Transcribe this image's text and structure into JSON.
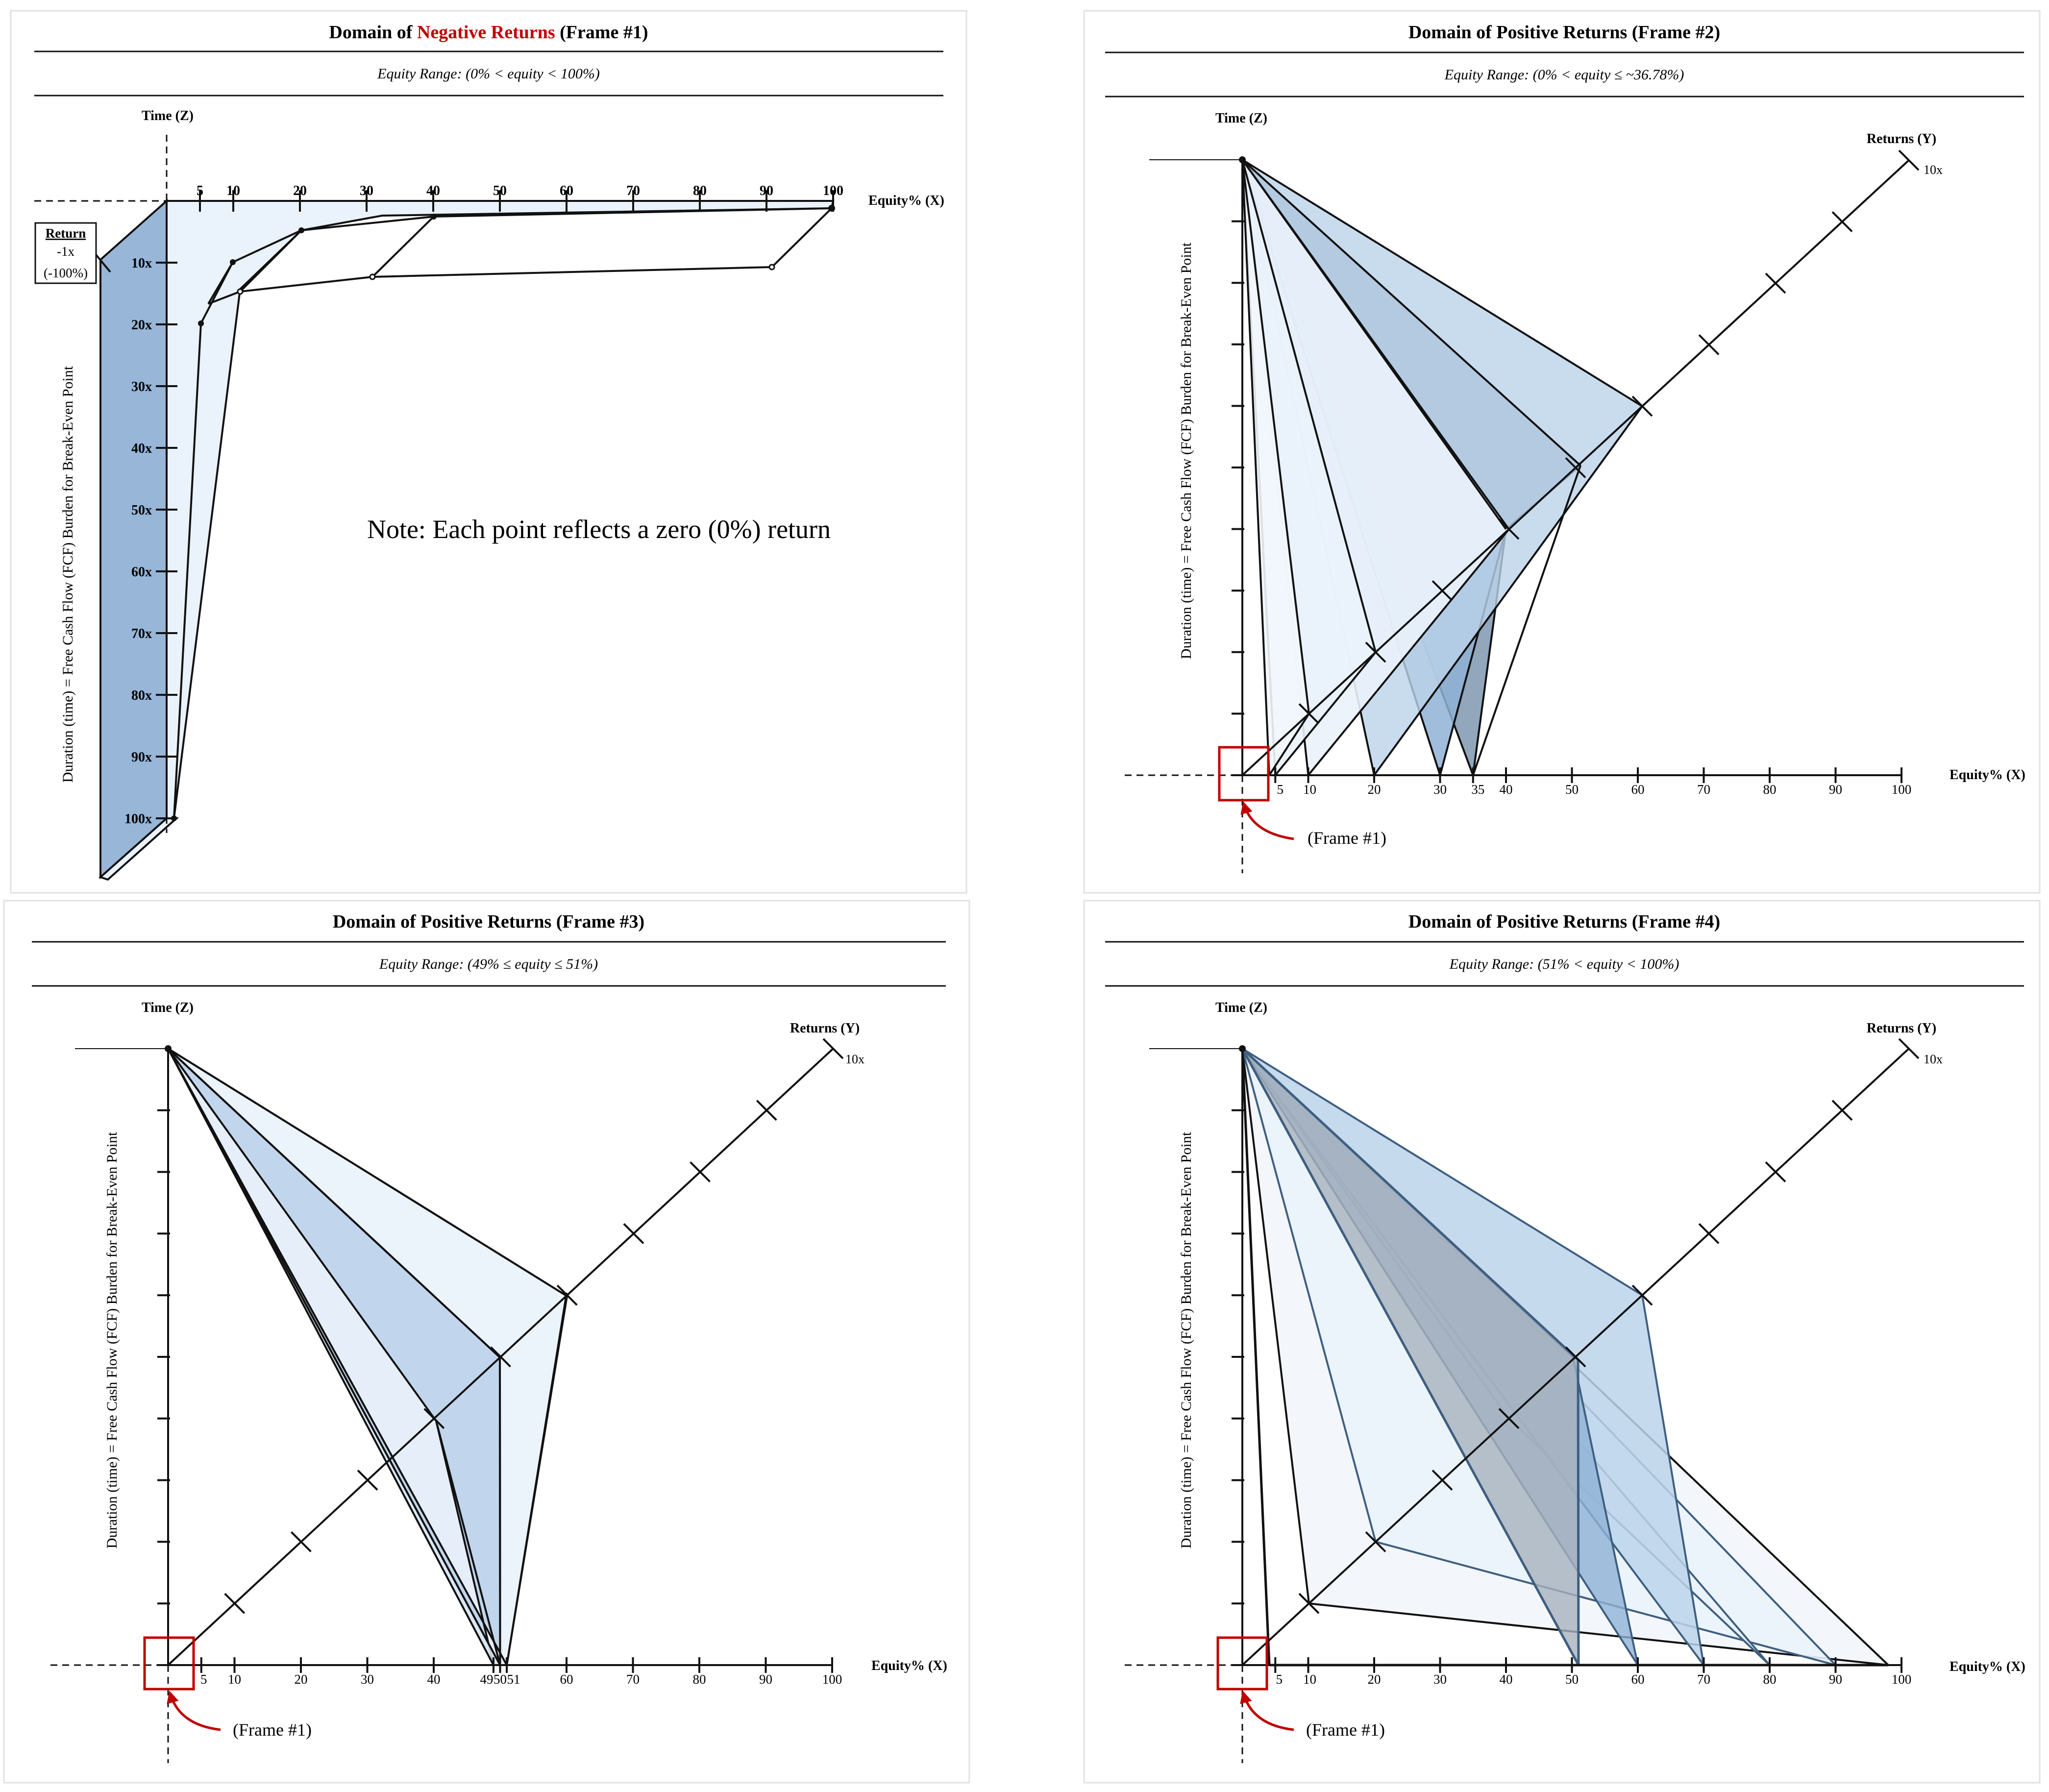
{
  "colors": {
    "axis": "#111111",
    "negative_red": "#c00000",
    "frame_box": "#c00000",
    "fill_light": "#eaf2fb",
    "fill_mid": "#bcd3ea",
    "fill_dark": "#8fb2d6",
    "fill_slate": "#7f96b0",
    "fill_gray": "#a8b2bd",
    "edge_blue": "#3f5f80"
  },
  "frame1": {
    "title_prefix": "Domain of ",
    "title_red": "Negative Returns",
    "title_suffix": " (Frame #1)",
    "subtitle": "Equity Range:  (0% < equity < 100%)",
    "time_label": "Time (Z)",
    "x_label": "Equity% (X)",
    "y_axis_label": "Duration (time) = Free Cash Flow (FCF) Burden for Break-Even Point",
    "x_ticks": [
      "5",
      "10",
      "20",
      "30",
      "40",
      "50",
      "60",
      "70",
      "80",
      "90",
      "100"
    ],
    "z_ticks": [
      "10x",
      "20x",
      "30x",
      "40x",
      "50x",
      "60x",
      "70x",
      "80x",
      "90x",
      "100x"
    ],
    "return_box": {
      "heading": "Return",
      "line1": "-1x",
      "line2": "(-100%)"
    },
    "note": "Note: Each point reflects a zero (0%) return"
  },
  "frame2": {
    "title": "Domain of Positive Returns (Frame #2)",
    "subtitle": "Equity Range:  (0% < equity ≤ ~36.78%)",
    "time_label": "Time (Z)",
    "returns_label": "Returns (Y)",
    "returns_max": "10x",
    "x_label": "Equity% (X)",
    "y_axis_label": "Duration (time) = Free Cash Flow (FCF) Burden for Break-Even Point",
    "x_ticks": [
      "5",
      "10",
      "20",
      "30",
      "35",
      "40",
      "50",
      "60",
      "70",
      "80",
      "90",
      "100"
    ],
    "frame_ref": "(Frame #1)"
  },
  "frame3": {
    "title": "Domain of Positive Returns (Frame #3)",
    "subtitle": "Equity Range:  (49% ≤ equity ≤ 51%)",
    "time_label": "Time (Z)",
    "returns_label": "Returns (Y)",
    "returns_max": "10x",
    "x_label": "Equity% (X)",
    "y_axis_label": "Duration (time) = Free Cash Flow (FCF) Burden for Break-Even Point",
    "x_ticks": [
      "5",
      "10",
      "20",
      "30",
      "40",
      "49",
      "50",
      "51",
      "60",
      "70",
      "80",
      "90",
      "100"
    ],
    "frame_ref": "(Frame #1)"
  },
  "frame4": {
    "title": "Domain of Positive Returns (Frame #4)",
    "subtitle": "Equity Range:  (51% < equity < 100%)",
    "time_label": "Time (Z)",
    "returns_label": "Returns (Y)",
    "returns_max": "10x",
    "x_label": "Equity% (X)",
    "y_axis_label": "Duration (time) = Free Cash Flow (FCF) Burden for Break-Even Point",
    "x_ticks": [
      "5",
      "10",
      "20",
      "30",
      "40",
      "50",
      "60",
      "70",
      "80",
      "90",
      "100"
    ],
    "frame_ref": "(Frame #1)"
  }
}
